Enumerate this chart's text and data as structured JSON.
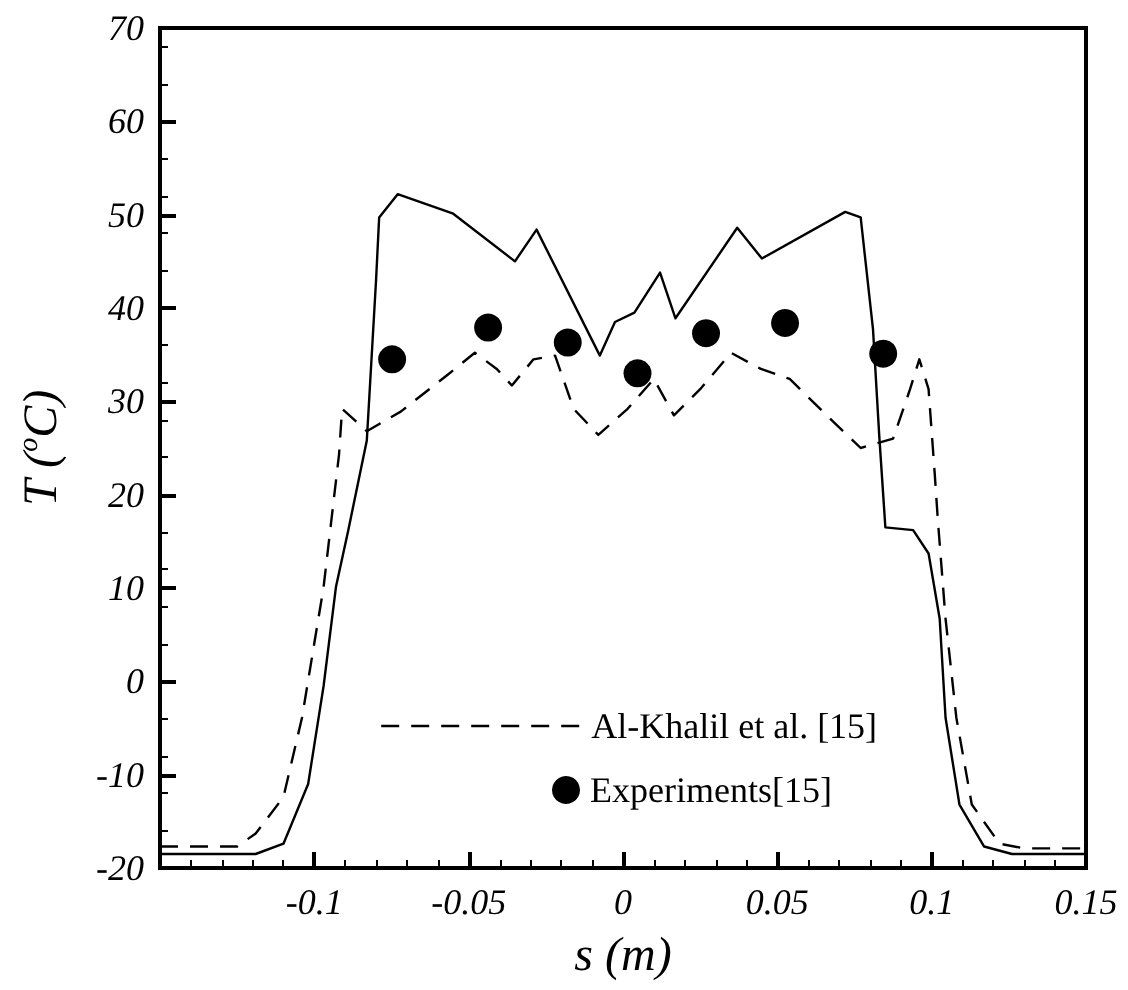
{
  "chart_data": {
    "type": "line",
    "xlabel": "s (m)",
    "ylabel": "T ($^{o}$C)",
    "xlim": [
      -0.15,
      0.15
    ],
    "xticks": [
      -0.1,
      -0.05,
      0,
      0.05,
      0.1,
      0.15
    ],
    "ylim": [
      -20,
      70
    ],
    "yticks": [
      -20,
      -10,
      0,
      10,
      20,
      30,
      40,
      50,
      60,
      70
    ],
    "grid": false,
    "legend": "bottom",
    "series": [
      {
        "color": "#000000",
        "line_style": "solid",
        "marker": "none",
        "x": [
          -0.15,
          -0.119,
          -0.11,
          -0.102,
          -0.097,
          -0.093,
          -0.089,
          -0.083,
          -0.08,
          -0.079,
          -0.073,
          -0.055,
          -0.035,
          -0.028,
          -0.0075,
          -0.0026,
          0.0037,
          0.012,
          0.017,
          0.037,
          0.045,
          0.072,
          0.077,
          0.081,
          0.083,
          0.085,
          0.094,
          0.099,
          0.1026,
          0.1045,
          0.109,
          0.117,
          0.126,
          0.15
        ],
        "values": [
          -18.5,
          -18.5,
          -17.4,
          -11,
          -0.5,
          10.1,
          16.2,
          25.8,
          43,
          49.7,
          52.2,
          50.1,
          45,
          48.4,
          34.9,
          38.5,
          39.5,
          43.8,
          38.9,
          48.6,
          45.3,
          50.3,
          49.7,
          37.7,
          26.4,
          16.5,
          16.2,
          13.7,
          6.7,
          -3.9,
          -13.2,
          -17.7,
          -18.5,
          -18.5
        ]
      },
      {
        "name": "Al-Khalil et al. [15]",
        "color": "#000000",
        "line_style": "dashed",
        "marker": "none",
        "x": [
          -0.15,
          -0.125,
          -0.119,
          -0.11,
          -0.104,
          -0.097,
          -0.092,
          -0.091,
          -0.083,
          -0.072,
          -0.057,
          -0.048,
          -0.041,
          -0.036,
          -0.029,
          -0.022,
          -0.016,
          -0.008,
          0.0015,
          0.01,
          0.0165,
          0.025,
          0.035,
          0.0445,
          0.054,
          0.066,
          0.077,
          0.0875,
          0.093,
          0.096,
          0.099,
          0.101,
          0.102,
          0.1045,
          0.108,
          0.113,
          0.122,
          0.13,
          0.15
        ],
        "values": [
          -17.7,
          -17.7,
          -16.3,
          -12.4,
          -3.9,
          10.1,
          24.3,
          29.2,
          26.8,
          28.9,
          32.8,
          35.2,
          33.5,
          31.7,
          34.5,
          34.9,
          29.2,
          26.4,
          29.2,
          32.4,
          28.5,
          31.3,
          35.2,
          33.5,
          32.4,
          28.5,
          25,
          26,
          31.3,
          34.5,
          31.3,
          22.2,
          17.3,
          6.7,
          -3.9,
          -13.2,
          -17.4,
          -17.9,
          -17.9
        ]
      },
      {
        "name": "Experiments[15]",
        "type": "scatter",
        "color": "#000000",
        "marker": "circle",
        "x": [
          -0.0748,
          -0.0437,
          -0.0179,
          0.0047,
          0.0269,
          0.0525,
          0.0843
        ],
        "values": [
          34.5,
          37.9,
          36.3,
          33,
          37.3,
          38.4,
          35.1
        ]
      }
    ]
  }
}
